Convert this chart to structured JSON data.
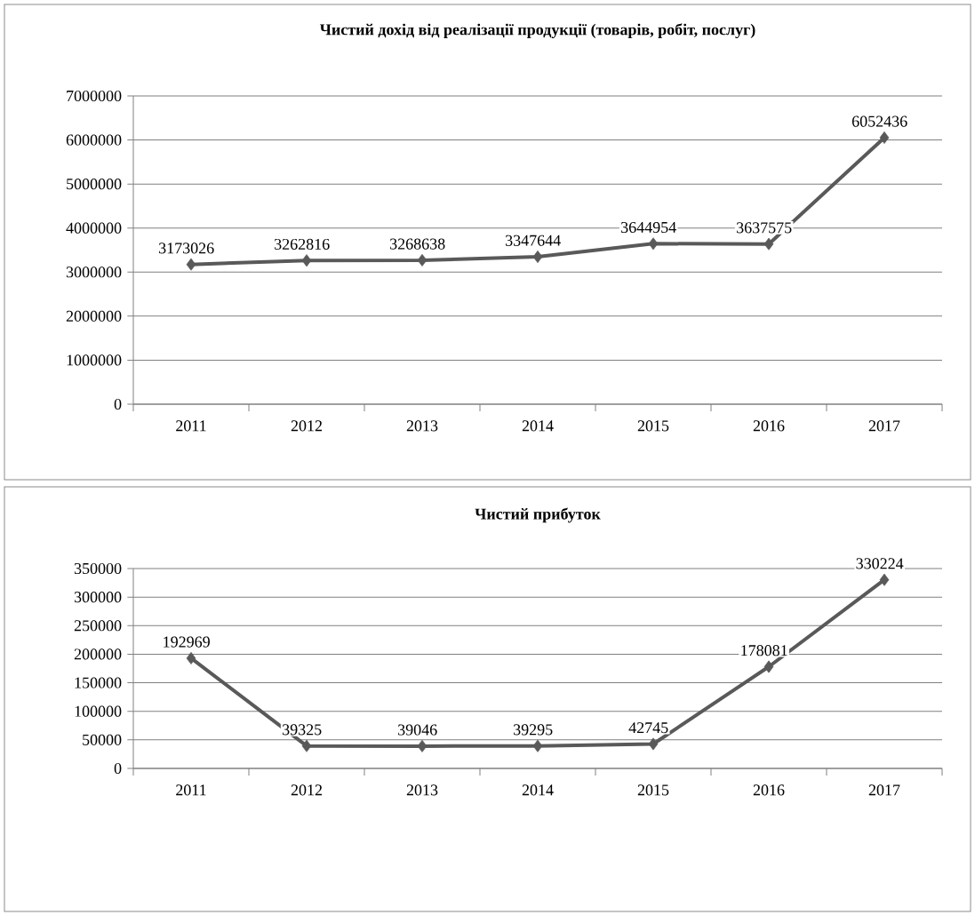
{
  "chart_data": [
    {
      "type": "line",
      "title": "Чистий дохід від реалізації продукції (товарів, робіт, послуг)",
      "categories": [
        "2011",
        "2012",
        "2013",
        "2014",
        "2015",
        "2016",
        "2017"
      ],
      "values": [
        3173026,
        3262816,
        3268638,
        3347644,
        3644954,
        3637575,
        6052436
      ],
      "color": "#595959",
      "ylim": [
        0,
        7000000
      ],
      "yticks": [
        0,
        1000000,
        2000000,
        3000000,
        4000000,
        5000000,
        6000000,
        7000000
      ],
      "grid": "y",
      "marker": "diamond",
      "data_labels": true
    },
    {
      "type": "line",
      "title": "Чистий прибуток",
      "categories": [
        "2011",
        "2012",
        "2013",
        "2014",
        "2015",
        "2016",
        "2017"
      ],
      "values": [
        192969,
        39325,
        39046,
        39295,
        42745,
        178081,
        330224
      ],
      "color": "#595959",
      "ylim": [
        0,
        350000
      ],
      "yticks": [
        0,
        50000,
        100000,
        150000,
        200000,
        250000,
        300000,
        350000
      ],
      "grid": "y",
      "marker": "diamond",
      "data_labels": true
    }
  ]
}
